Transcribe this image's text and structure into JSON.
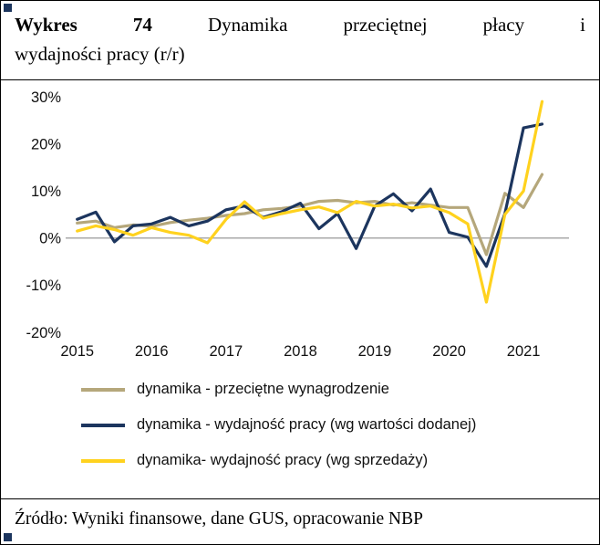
{
  "header": {
    "title_bold": "Wykres 74",
    "title_line1_rest": "Dynamika przeciętnej płacy i",
    "title_line2": "wydajności pracy (r/r)"
  },
  "chart_data": {
    "type": "line",
    "title": "Dynamika przeciętnej płacy i wydajności pracy (r/r)",
    "xlabel": "",
    "ylabel": "",
    "x": [
      2015.0,
      2015.25,
      2015.5,
      2015.75,
      2016.0,
      2016.25,
      2016.5,
      2016.75,
      2017.0,
      2017.25,
      2017.5,
      2017.75,
      2018.0,
      2018.25,
      2018.5,
      2018.75,
      2019.0,
      2019.25,
      2019.5,
      2019.75,
      2020.0,
      2020.25,
      2020.5,
      2020.75,
      2021.0,
      2021.25
    ],
    "series": [
      {
        "name": "dynamika - przeciętne wynagrodzenie",
        "color": "#B5A77B",
        "values": [
          3.2,
          3.6,
          2.2,
          2.8,
          2.5,
          3.3,
          3.8,
          4.2,
          4.8,
          5.2,
          6.0,
          6.3,
          6.8,
          7.8,
          8.0,
          7.5,
          7.8,
          7.0,
          7.5,
          7.0,
          6.5,
          6.5,
          -3.5,
          9.5,
          6.5,
          13.5
        ]
      },
      {
        "name": "dynamika - wydajność pracy (wg wartości dodanej)",
        "color": "#1C355E",
        "values": [
          4.0,
          5.5,
          -0.8,
          2.6,
          3.0,
          4.4,
          2.6,
          3.6,
          6.0,
          6.8,
          4.4,
          5.6,
          7.4,
          2.0,
          5.2,
          -2.2,
          6.8,
          9.4,
          5.8,
          10.4,
          1.2,
          0.2,
          -6.0,
          5.2,
          23.4,
          24.2
        ]
      },
      {
        "name": "dynamika- wydajność pracy (wg sprzedaży)",
        "color": "#FFD21E",
        "values": [
          1.5,
          2.6,
          1.8,
          0.6,
          2.2,
          1.2,
          0.6,
          -1.0,
          4.0,
          7.7,
          4.2,
          5.2,
          6.0,
          6.6,
          5.4,
          7.8,
          6.8,
          7.2,
          6.4,
          6.8,
          5.4,
          3.0,
          -13.6,
          5.0,
          10.0,
          29.0
        ]
      }
    ],
    "x_ticks": [
      2015,
      2016,
      2017,
      2018,
      2019,
      2020,
      2021
    ],
    "x_tick_labels": [
      "2015",
      "2016",
      "2017",
      "2018",
      "2019",
      "2020",
      "2021"
    ],
    "y_ticks": [
      30,
      20,
      10,
      0,
      -10,
      -20
    ],
    "y_tick_labels": [
      "30%",
      "20%",
      "10%",
      "0%",
      "-10%",
      "-20%"
    ],
    "ylim": [
      -20,
      30
    ],
    "xlim": [
      2014.93,
      2021.55
    ],
    "grid": "zero-line-only",
    "zero_line_color": "#A9A9A9",
    "legend_position": "bottom"
  },
  "footer": {
    "source": "Źródło: Wyniki finansowe, dane GUS, opracowanie NBP"
  }
}
